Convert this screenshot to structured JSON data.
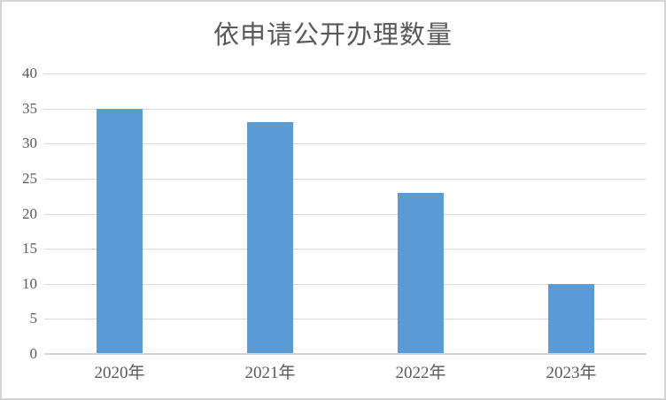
{
  "window": {
    "background_color": "#ffffff",
    "border_color": "#d3d3d3"
  },
  "chart_data": {
    "type": "bar",
    "title": "依申请公开办理数量",
    "categories": [
      "2020年",
      "2021年",
      "2022年",
      "2023年"
    ],
    "values": [
      35,
      33,
      23,
      10
    ],
    "xlabel": "",
    "ylabel": "",
    "ylim": [
      0,
      40
    ],
    "yticks": [
      0,
      5,
      10,
      15,
      20,
      25,
      30,
      35,
      40
    ],
    "grid": true,
    "legend": "none",
    "colors": {
      "bar": "#5b9bd5",
      "gridline": "#d9d9d9",
      "axis_line": "#d2d2d2",
      "text": "#595959"
    }
  }
}
